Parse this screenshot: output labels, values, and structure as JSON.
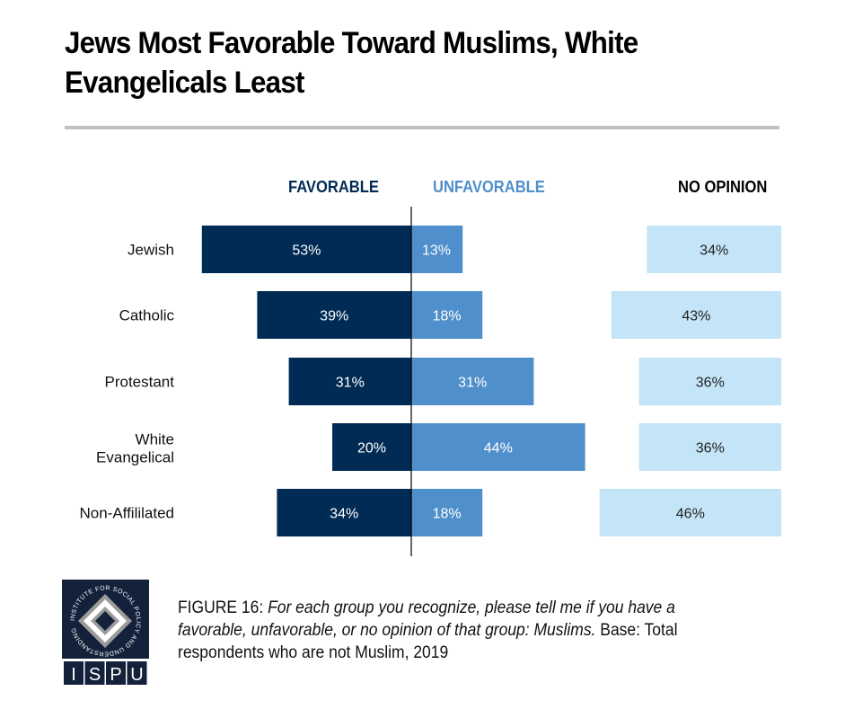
{
  "title": "Jews Most Favorable Toward Muslims, White Evangelicals Least",
  "headers": {
    "favorable": "FAVORABLE",
    "unfavorable": "UNFAVORABLE",
    "no_opinion": "NO OPINION"
  },
  "colors": {
    "favorable": "#002b55",
    "unfavorable": "#4f8fcb",
    "no_opinion": "#c4e4f8",
    "axis": "#000000",
    "rule": "#c0c0c0"
  },
  "chart_data": {
    "type": "bar",
    "orientation": "horizontal-diverging",
    "title": "Jews Most Favorable Toward Muslims, White Evangelicals Least",
    "categories": [
      "Jewish",
      "Catholic",
      "Protestant",
      "White Evangelical",
      "Non-Affililated"
    ],
    "series": [
      {
        "name": "FAVORABLE",
        "values": [
          53,
          39,
          31,
          20,
          34
        ]
      },
      {
        "name": "UNFAVORABLE",
        "values": [
          13,
          18,
          31,
          44,
          18
        ]
      },
      {
        "name": "NO OPINION",
        "values": [
          34,
          43,
          36,
          36,
          46
        ]
      }
    ],
    "unit": "%",
    "xlabel": "",
    "ylabel": "",
    "grid": false,
    "legend": "top"
  },
  "caption": {
    "figure_label": "FIGURE 16",
    "question": "For each group you recognize, please tell me if you have a favorable, unfavorable, or no opinion of that group: Muslims.",
    "base": " Base: Total respondents who are not Muslim, 2019"
  },
  "logo": {
    "ring_text": "INSTITUTE FOR SOCIAL POLICY AND UNDERSTANDING",
    "letters": [
      "I",
      "S",
      "P",
      "U"
    ]
  }
}
